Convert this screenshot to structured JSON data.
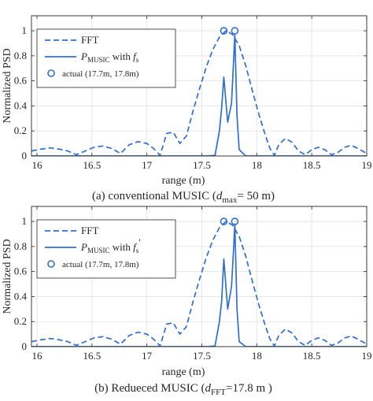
{
  "chart_data": [
    {
      "type": "line",
      "caption": {
        "prefix": "(a) conventional MUSIC (",
        "var": "d",
        "sub": "max",
        "suffix": "= 50 m)"
      },
      "xlabel": "range (m)",
      "ylabel": "Normalized PSD",
      "xlim": [
        15.95,
        19.0
      ],
      "ylim": [
        0,
        1.12
      ],
      "xticks": [
        16,
        16.5,
        17,
        17.5,
        18,
        18.5,
        19
      ],
      "xtick_labels": [
        "16",
        "16.5",
        "17",
        "17.5",
        "18",
        "18.5",
        "19"
      ],
      "yticks": [
        0,
        0.2,
        0.4,
        0.6,
        0.8,
        1
      ],
      "ytick_labels": [
        "0",
        "0.2",
        "0.4",
        "0.6",
        "0.8",
        "1"
      ],
      "grid": true,
      "legend_position": "top-left",
      "legend": [
        {
          "kind": "dashed",
          "text": "FFT"
        },
        {
          "kind": "solid",
          "text": "P",
          "sub": "MUSIC",
          "after": " with ",
          "var": "f",
          "varsub": "s",
          "prime": ""
        },
        {
          "kind": "marker",
          "text": "actual (17.7m, 17.8m)"
        }
      ],
      "series": [
        {
          "name": "FFT",
          "style": "dashed",
          "color": "#2f6fce",
          "x": [
            15.95,
            16.04,
            16.12,
            16.2,
            16.28,
            16.36,
            16.44,
            16.52,
            16.6,
            16.68,
            16.76,
            16.84,
            16.92,
            17.0,
            17.06,
            17.12,
            17.18,
            17.24,
            17.3,
            17.36,
            17.42,
            17.48,
            17.54,
            17.6,
            17.66,
            17.72,
            17.78,
            17.84,
            17.9,
            17.96,
            18.02,
            18.08,
            18.12,
            18.16,
            18.2,
            18.26,
            18.32,
            18.38,
            18.44,
            18.5,
            18.56,
            18.62,
            18.68,
            18.74,
            18.8,
            18.86,
            18.92,
            19.0
          ],
          "y": [
            0.04,
            0.055,
            0.065,
            0.055,
            0.04,
            0.01,
            0.04,
            0.07,
            0.08,
            0.06,
            0.02,
            0.09,
            0.115,
            0.1,
            0.06,
            0.005,
            0.18,
            0.19,
            0.1,
            0.16,
            0.36,
            0.54,
            0.71,
            0.85,
            0.95,
            1.0,
            0.97,
            0.88,
            0.72,
            0.52,
            0.33,
            0.16,
            0.06,
            0.005,
            0.09,
            0.14,
            0.11,
            0.04,
            0.01,
            0.05,
            0.07,
            0.05,
            0.01,
            0.03,
            0.07,
            0.085,
            0.06,
            0.02
          ]
        },
        {
          "name": "P_MUSIC with f_s",
          "style": "solid",
          "color": "#2f6fce",
          "x": [
            15.95,
            17.55,
            17.62,
            17.66,
            17.68,
            17.7,
            17.735,
            17.77,
            17.79,
            17.8,
            17.82,
            17.84,
            17.9,
            19.0
          ],
          "y": [
            0.0,
            0.0,
            0.005,
            0.2,
            0.38,
            0.63,
            0.27,
            0.42,
            0.78,
            0.97,
            0.32,
            0.05,
            0.0,
            0.0
          ]
        },
        {
          "name": "actual (17.7m, 17.8m)",
          "style": "marker",
          "color": "#2f6fce",
          "x": [
            17.7,
            17.8
          ],
          "y": [
            1.0,
            1.0
          ]
        }
      ]
    },
    {
      "type": "line",
      "caption": {
        "prefix": "(b) Redueced MUSIC (",
        "var": "d",
        "sub": "FFT",
        "suffix": "=17.8 m )"
      },
      "xlabel": "range (m)",
      "ylabel": "Normalized PSD",
      "xlim": [
        15.95,
        19.0
      ],
      "ylim": [
        0,
        1.12
      ],
      "xticks": [
        16,
        16.5,
        17,
        17.5,
        18,
        18.5,
        19
      ],
      "xtick_labels": [
        "16",
        "16.5",
        "17",
        "17.5",
        "18",
        "18.5",
        "19"
      ],
      "yticks": [
        0,
        0.2,
        0.4,
        0.6,
        0.8,
        1
      ],
      "ytick_labels": [
        "0",
        "0.2",
        "0.4",
        "0.6",
        "0.8",
        "1"
      ],
      "grid": true,
      "legend_position": "top-left",
      "legend": [
        {
          "kind": "dashed",
          "text": "FFT"
        },
        {
          "kind": "solid",
          "text": "P",
          "sub": "MUSIC",
          "after": " with ",
          "var": "f",
          "varsub": "s",
          "prime": "'"
        },
        {
          "kind": "marker",
          "text": "actual (17.7m, 17.8m)"
        }
      ],
      "series": [
        {
          "name": "FFT",
          "style": "dashed",
          "color": "#2f6fce",
          "x": [
            15.95,
            16.04,
            16.12,
            16.2,
            16.28,
            16.36,
            16.44,
            16.52,
            16.6,
            16.68,
            16.76,
            16.84,
            16.92,
            17.0,
            17.06,
            17.12,
            17.18,
            17.24,
            17.3,
            17.36,
            17.42,
            17.48,
            17.54,
            17.6,
            17.66,
            17.72,
            17.78,
            17.84,
            17.9,
            17.96,
            18.02,
            18.08,
            18.12,
            18.16,
            18.2,
            18.26,
            18.32,
            18.38,
            18.44,
            18.5,
            18.56,
            18.62,
            18.68,
            18.74,
            18.8,
            18.86,
            18.92,
            19.0
          ],
          "y": [
            0.04,
            0.055,
            0.065,
            0.055,
            0.04,
            0.01,
            0.04,
            0.07,
            0.08,
            0.06,
            0.02,
            0.09,
            0.115,
            0.1,
            0.06,
            0.005,
            0.18,
            0.19,
            0.1,
            0.16,
            0.36,
            0.54,
            0.71,
            0.85,
            0.95,
            1.0,
            0.97,
            0.88,
            0.72,
            0.52,
            0.33,
            0.16,
            0.06,
            0.005,
            0.09,
            0.14,
            0.11,
            0.04,
            0.01,
            0.05,
            0.07,
            0.05,
            0.01,
            0.03,
            0.07,
            0.085,
            0.06,
            0.02
          ]
        },
        {
          "name": "P_MUSIC with f_s'",
          "style": "solid",
          "color": "#2f6fce",
          "x": [
            15.95,
            17.55,
            17.62,
            17.66,
            17.68,
            17.7,
            17.735,
            17.77,
            17.79,
            17.8,
            17.82,
            17.84,
            17.9,
            19.0
          ],
          "y": [
            0.0,
            0.0,
            0.005,
            0.2,
            0.36,
            0.7,
            0.3,
            0.48,
            0.8,
            0.98,
            0.3,
            0.04,
            0.0,
            0.0
          ]
        },
        {
          "name": "actual (17.7m, 17.8m)",
          "style": "marker",
          "color": "#2f6fce",
          "x": [
            17.7,
            17.8
          ],
          "y": [
            1.0,
            1.0
          ]
        }
      ]
    }
  ]
}
